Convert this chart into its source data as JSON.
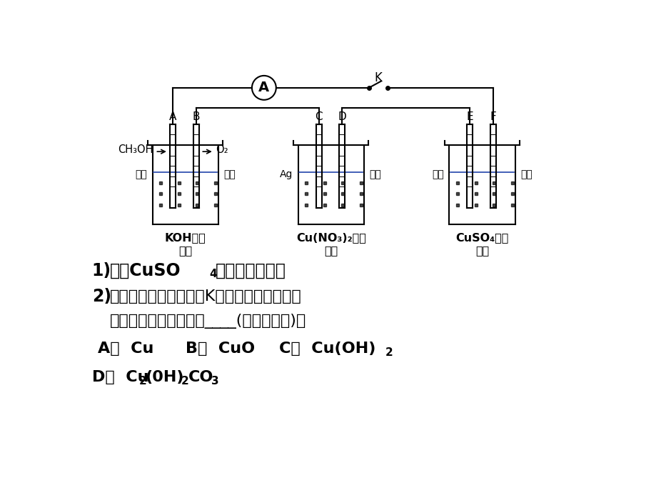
{
  "bg_color": "#ffffff",
  "ammeter_label": "A",
  "switch_label": "K",
  "ch3oh_label": "CH₃OH",
  "o2_label": "O₂",
  "label_shimo": "石墨",
  "label_ag": "Ag",
  "cell1_line1": "KOH溶液",
  "cell1_line2": "甲池",
  "cell2_line1": "Cu(NO₃)₂溶液",
  "cell2_line2": "乙池",
  "cell3_line1": "CuSO₄溶液",
  "cell3_line2": "丙池"
}
